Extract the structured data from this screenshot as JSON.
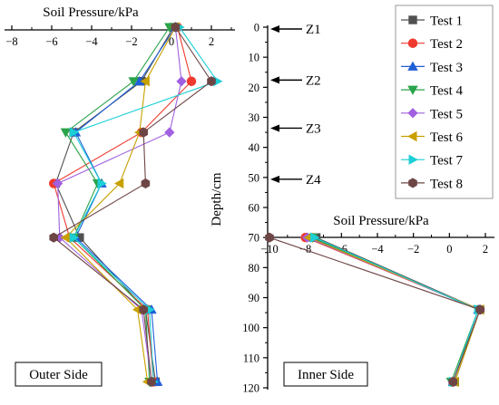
{
  "chart_data": {
    "type": "line",
    "outer_panel": {
      "title": "Soil Pressure/kPa",
      "xlim": [
        -8,
        3
      ],
      "x_ticks": [
        "−8",
        "−6",
        "−4",
        "−2",
        "0",
        "2"
      ],
      "box_label": "Outer Side",
      "series": [
        {
          "name": "Test 1",
          "points": [
            [
              0.1,
              0
            ],
            [
              -1.5,
              18
            ],
            [
              -4.9,
              35
            ],
            [
              -5.8,
              52
            ],
            [
              -4.6,
              70
            ],
            [
              -1.3,
              94
            ],
            [
              -0.8,
              118
            ]
          ]
        },
        {
          "name": "Test 2",
          "points": [
            [
              0.3,
              0
            ],
            [
              1.0,
              18
            ],
            [
              -1.5,
              35
            ],
            [
              -5.9,
              52
            ],
            [
              -5.1,
              70
            ],
            [
              -1.2,
              94
            ],
            [
              -0.9,
              118
            ]
          ]
        },
        {
          "name": "Test 3",
          "points": [
            [
              0.2,
              0
            ],
            [
              -1.6,
              18
            ],
            [
              -4.8,
              35
            ],
            [
              -3.5,
              52
            ],
            [
              -4.8,
              70
            ],
            [
              -1.0,
              94
            ],
            [
              -0.7,
              118
            ]
          ]
        },
        {
          "name": "Test 4",
          "points": [
            [
              -0.1,
              0
            ],
            [
              -1.9,
              18
            ],
            [
              -5.3,
              35
            ],
            [
              -3.7,
              52
            ],
            [
              -4.9,
              70
            ],
            [
              -1.3,
              94
            ],
            [
              -1.1,
              118
            ]
          ]
        },
        {
          "name": "Test 5",
          "points": [
            [
              0.2,
              0
            ],
            [
              0.5,
              18
            ],
            [
              -0.1,
              35
            ],
            [
              -5.7,
              52
            ],
            [
              -5.6,
              70
            ],
            [
              -1.5,
              94
            ],
            [
              -1.0,
              118
            ]
          ]
        },
        {
          "name": "Test 6",
          "points": [
            [
              0.2,
              0
            ],
            [
              -1.3,
              18
            ],
            [
              -1.6,
              35
            ],
            [
              -2.6,
              52
            ],
            [
              -5.3,
              70
            ],
            [
              -1.7,
              94
            ],
            [
              -1.2,
              118
            ]
          ]
        },
        {
          "name": "Test 7",
          "points": [
            [
              0.4,
              0
            ],
            [
              2.3,
              18
            ],
            [
              -4.9,
              35
            ],
            [
              -3.5,
              52
            ],
            [
              -4.9,
              70
            ],
            [
              -1.1,
              94
            ],
            [
              -0.9,
              118
            ]
          ]
        },
        {
          "name": "Test 8",
          "points": [
            [
              0.2,
              0
            ],
            [
              2.0,
              18
            ],
            [
              -1.4,
              35
            ],
            [
              -1.3,
              52
            ],
            [
              -5.9,
              70
            ],
            [
              -1.4,
              94
            ],
            [
              -1.0,
              118
            ]
          ]
        }
      ]
    },
    "depth_axis": {
      "label": "Depth/cm",
      "ylim": [
        0,
        120
      ],
      "ticks": [
        "0",
        "10",
        "20",
        "30",
        "40",
        "50",
        "60",
        "70",
        "80",
        "90",
        "100",
        "110",
        "120"
      ],
      "markers": [
        {
          "label": "Z1",
          "depth": 0
        },
        {
          "label": "Z2",
          "depth": 17
        },
        {
          "label": "Z3",
          "depth": 33
        },
        {
          "label": "Z4",
          "depth": 50
        }
      ]
    },
    "inner_panel": {
      "title": "Soil Pressure/kPa",
      "xlim": [
        -10.3,
        2.2
      ],
      "x_ticks": [
        "−10",
        "−8",
        "−6",
        "−4",
        "−2",
        "0",
        "2"
      ],
      "box_label": "Inner Side",
      "series": [
        {
          "name": "Test 1",
          "points": [
            [
              -7.4,
              70
            ],
            [
              1.7,
              94
            ],
            [
              0.3,
              118
            ]
          ]
        },
        {
          "name": "Test 2",
          "points": [
            [
              -8.0,
              70
            ],
            [
              1.7,
              94
            ],
            [
              0.2,
              118
            ]
          ]
        },
        {
          "name": "Test 3",
          "points": [
            [
              -7.7,
              70
            ],
            [
              1.6,
              94
            ],
            [
              0.2,
              118
            ]
          ]
        },
        {
          "name": "Test 4",
          "points": [
            [
              -7.6,
              70
            ],
            [
              1.6,
              94
            ],
            [
              0.1,
              118
            ]
          ]
        },
        {
          "name": "Test 5",
          "points": [
            [
              -7.9,
              70
            ],
            [
              1.7,
              94
            ],
            [
              0.2,
              118
            ]
          ]
        },
        {
          "name": "Test 6",
          "points": [
            [
              -7.8,
              70
            ],
            [
              1.7,
              94
            ],
            [
              0.3,
              118
            ]
          ]
        },
        {
          "name": "Test 7",
          "points": [
            [
              -7.5,
              70
            ],
            [
              1.6,
              94
            ],
            [
              0.2,
              118
            ]
          ]
        },
        {
          "name": "Test 8",
          "points": [
            [
              -10.0,
              70
            ],
            [
              1.7,
              94
            ],
            [
              0.2,
              118
            ]
          ]
        }
      ]
    },
    "legend": {
      "placement": "top-right",
      "entries": [
        {
          "name": "Test 1",
          "color": "#505050",
          "marker": "square"
        },
        {
          "name": "Test 2",
          "color": "#ee3a2e",
          "marker": "circle"
        },
        {
          "name": "Test 3",
          "color": "#1f5fd8",
          "marker": "triangle-up"
        },
        {
          "name": "Test 4",
          "color": "#2ba34a",
          "marker": "triangle-down"
        },
        {
          "name": "Test 5",
          "color": "#a060e0",
          "marker": "diamond"
        },
        {
          "name": "Test 6",
          "color": "#c8a000",
          "marker": "triangle-left"
        },
        {
          "name": "Test 7",
          "color": "#1ccfd6",
          "marker": "triangle-right"
        },
        {
          "name": "Test 8",
          "color": "#6e4545",
          "marker": "hexagon"
        }
      ]
    }
  }
}
